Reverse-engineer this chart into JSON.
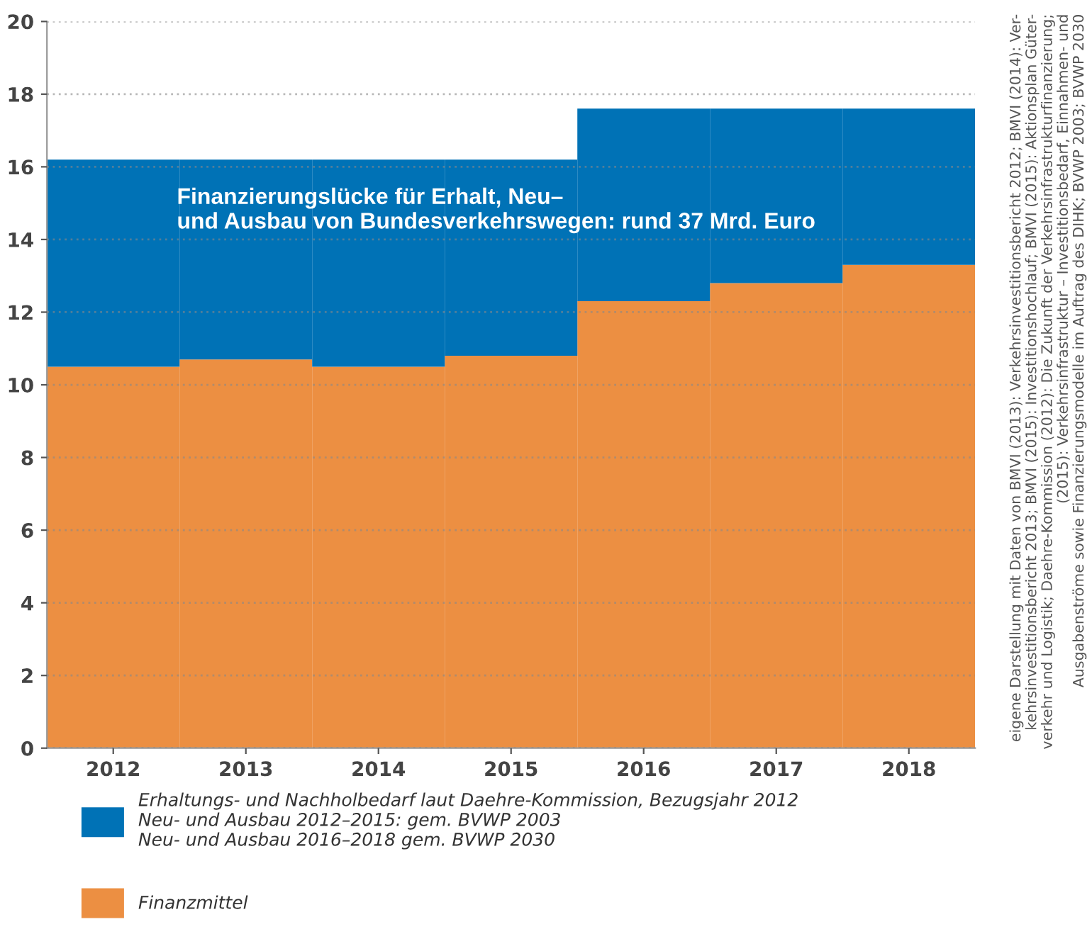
{
  "chart_data": {
    "type": "bar",
    "stacked": true,
    "categories": [
      "2012",
      "2013",
      "2014",
      "2015",
      "2016",
      "2017",
      "2018"
    ],
    "series": [
      {
        "name": "Finanzmittel",
        "color": "#ec8f42",
        "values": [
          10.5,
          10.7,
          10.5,
          10.8,
          12.3,
          12.8,
          13.3
        ]
      },
      {
        "name": "Erhaltungs- und Nachholbedarf laut Daehre-Kommission, Bezugsjahr 2012\nNeu- und Ausbau 2012–2015: gem. BVWP 2003\nNeu- und Ausbau 2016–2018 gem. BVWP 2030",
        "color": "#0072b6",
        "values": [
          5.7,
          5.5,
          5.7,
          5.4,
          5.3,
          4.8,
          4.3
        ]
      }
    ],
    "ylim": [
      0,
      20
    ],
    "yticks": [
      0,
      2,
      4,
      6,
      8,
      10,
      12,
      14,
      16,
      18,
      20
    ],
    "grid": "y",
    "legend": "bottom left",
    "annotations": [
      "Finanzierungslücke für Erhalt, Neu–\nund Ausbau von Bundesverkehrswegen: rund 37 Mrd. Euro",
      "eigene Darstellung mit Daten von BMVI (2013): Verkehrsinvestitionsbericht 2012; BMVI (2014): Ver-\nkehrsinvestitionsbericht 2013; BMVI (2015): Investitionshochlauf; BMVI (2015): Aktionsplan Güter-\nverkehr und Logistik; Daehre-Kommission (2012): Die Zukunft der Verkehrsinfrastrukturfinanzierung;\n(2015): Verkehrsinfrastruktur – Investitionsbedarf, Einnahmen- und\nAusgabenströme sowie Finanzierungsmodelle im Auftrag des DIHK; BVWP 2003; BVWP 2030"
    ]
  }
}
